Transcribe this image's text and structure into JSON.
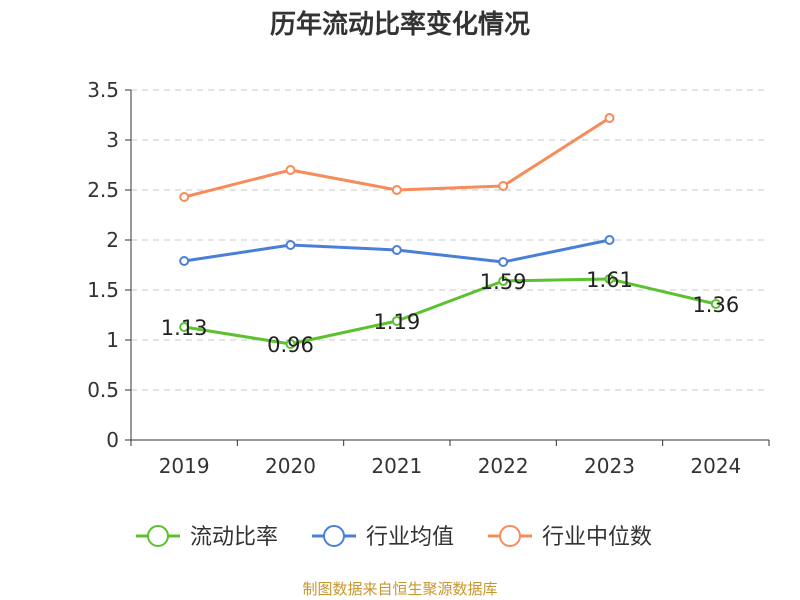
{
  "chart_data": {
    "type": "line",
    "title": "历年流动比率变化情况",
    "categories": [
      "2019",
      "2020",
      "2021",
      "2022",
      "2023",
      "2024"
    ],
    "ylim": [
      0,
      3.5
    ],
    "yticks": [
      0,
      0.5,
      1,
      1.5,
      2,
      2.5,
      3,
      3.5
    ],
    "ytick_labels": [
      "0",
      "0.5",
      "1",
      "1.5",
      "2",
      "2.5",
      "3",
      "3.5"
    ],
    "grid": true,
    "legend_position": "bottom",
    "series": [
      {
        "name": "流动比率",
        "color": "#5cc12f",
        "show_labels": true,
        "value_labels": [
          "1.13",
          "0.96",
          "1.19",
          "1.59",
          "1.61",
          "1.36"
        ],
        "values": [
          1.13,
          0.96,
          1.19,
          1.59,
          1.61,
          1.36
        ]
      },
      {
        "name": "行业均值",
        "color": "#4a7fd8",
        "show_labels": false,
        "values": [
          1.79,
          1.95,
          1.9,
          1.78,
          2.0,
          null
        ]
      },
      {
        "name": "行业中位数",
        "color": "#f58c5a",
        "show_labels": false,
        "values": [
          2.43,
          2.7,
          2.5,
          2.54,
          3.22,
          null
        ]
      }
    ]
  },
  "source_note": "制图数据来自恒生聚源数据库"
}
